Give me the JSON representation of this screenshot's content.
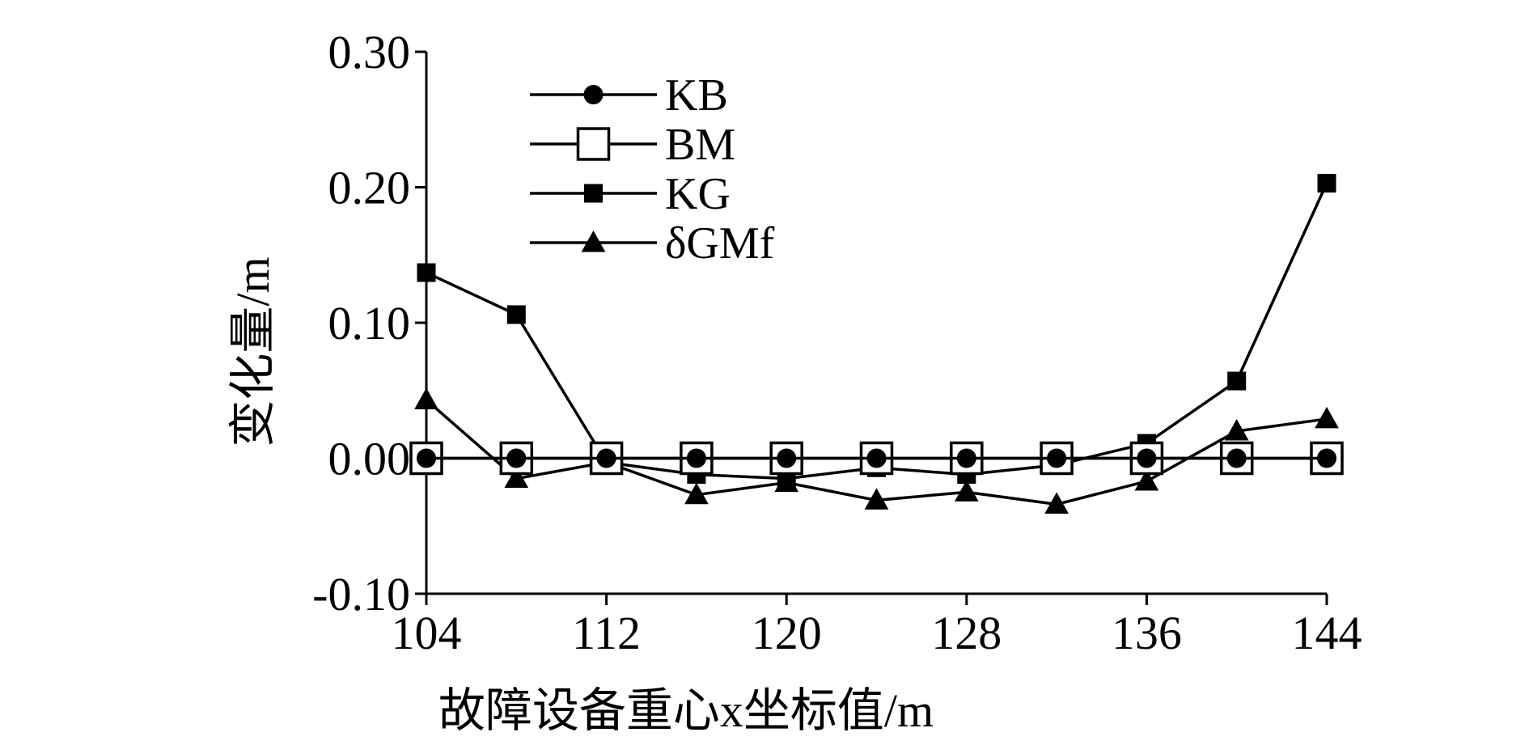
{
  "chart_data": {
    "type": "line",
    "xlabel": "故障设备重心x坐标值/m",
    "ylabel": "变化量/m",
    "x": [
      104,
      108,
      112,
      116,
      120,
      124,
      128,
      132,
      136,
      140,
      144
    ],
    "xlim": [
      104,
      144
    ],
    "ylim": [
      -0.1,
      0.3
    ],
    "x_ticks": [
      104,
      112,
      120,
      128,
      136,
      144
    ],
    "x_tick_labels": [
      "104",
      "112",
      "120",
      "128",
      "136",
      "144"
    ],
    "y_ticks": [
      -0.1,
      0.0,
      0.1,
      0.2,
      0.3
    ],
    "y_tick_labels": [
      "-0.10",
      "0.00",
      "0.10",
      "0.20",
      "0.30"
    ],
    "grid": false,
    "legend_position": "top-left",
    "series": [
      {
        "name": "KB",
        "marker": "circle-filled",
        "values": [
          0.0,
          0.0,
          0.0,
          0.0,
          0.0,
          0.0,
          0.0,
          0.0,
          0.0,
          0.0,
          0.0
        ]
      },
      {
        "name": "BM",
        "marker": "square-open",
        "values": [
          0.0,
          0.0,
          0.0,
          0.0,
          0.0,
          0.0,
          0.0,
          0.0,
          0.0,
          0.0,
          0.0
        ]
      },
      {
        "name": "KG",
        "marker": "square-filled",
        "values": [
          0.137,
          0.106,
          -0.003,
          -0.012,
          -0.015,
          -0.007,
          -0.012,
          -0.005,
          0.011,
          0.057,
          0.203
        ]
      },
      {
        "name": "δGMf",
        "marker": "triangle-filled",
        "values": [
          0.043,
          -0.015,
          -0.003,
          -0.027,
          -0.018,
          -0.031,
          -0.025,
          -0.034,
          -0.017,
          0.02,
          0.029
        ]
      }
    ],
    "colors": {
      "line": "#000000",
      "background": "#ffffff"
    }
  }
}
